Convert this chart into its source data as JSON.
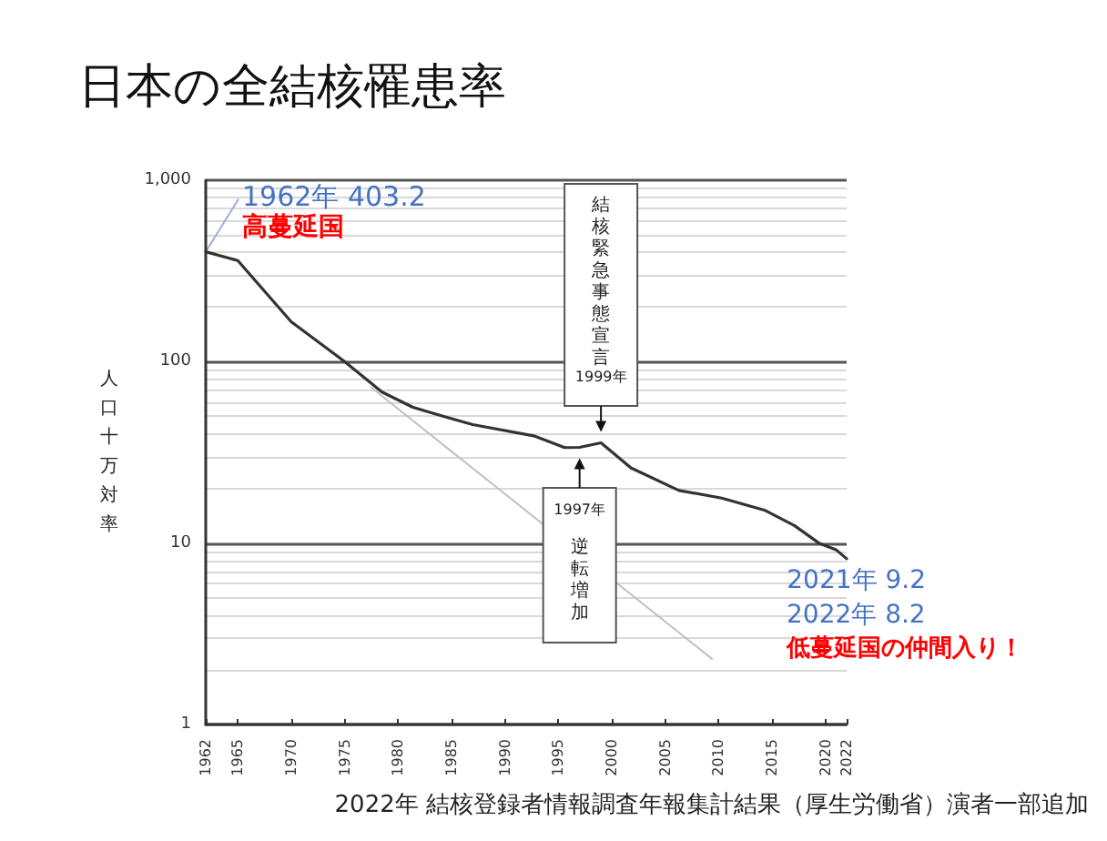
{
  "chart_data": {
    "type": "line",
    "title": "日本の全結核罹患率",
    "ylabel": "人口十万対率",
    "log": "y",
    "grid": "y",
    "marker": "none",
    "line_style": "solid",
    "xlim": [
      1962,
      2022
    ],
    "xticks": [
      1962,
      1965,
      1970,
      1975,
      1980,
      1985,
      1990,
      1995,
      2000,
      2005,
      2010,
      2015,
      2020,
      2022
    ],
    "ylim": [
      1,
      1000
    ],
    "yticks": [
      1,
      10,
      100,
      {
        "value": 1000,
        "label": "1,000"
      }
    ],
    "x": [
      1962,
      1965,
      1970,
      1975,
      1978.5,
      1981.4,
      1984.2,
      1987,
      1992.7,
      1995.6,
      1997,
      1999,
      2001.8,
      2006.3,
      2010.3,
      2014.3,
      2017.1,
      2019.4,
      2021,
      2022
    ],
    "series": [
      {
        "color": "#333333",
        "values": [
          403.2,
          361,
          166,
          100,
          68,
          56,
          50,
          45,
          39,
          33.6,
          33.7,
          35.7,
          26,
          19.5,
          17.7,
          15.2,
          12.5,
          10,
          9.2,
          8.2
        ]
      },
      {
        "color": "#c0c0c0",
        "x": [
          1977.5,
          2009.4
        ],
        "values": [
          72,
          2.3
        ]
      }
    ],
    "annotations": [
      {
        "text": "1962年 403.2",
        "x": 1962,
        "y": 403.2
      },
      "高蔓延国",
      "結核緊急事態宣言",
      "1999年",
      "1997年",
      "逆転増加",
      {
        "text": "2021年 9.2",
        "x": 2021,
        "y": 9.2
      },
      {
        "text": "2022年 8.2",
        "x": 2022,
        "y": 8.2
      },
      "低蔓延国の仲間入り！",
      "2022年 結核登録者情報調査年報集計結果（厚生労働省）演者一部追加"
    ]
  }
}
